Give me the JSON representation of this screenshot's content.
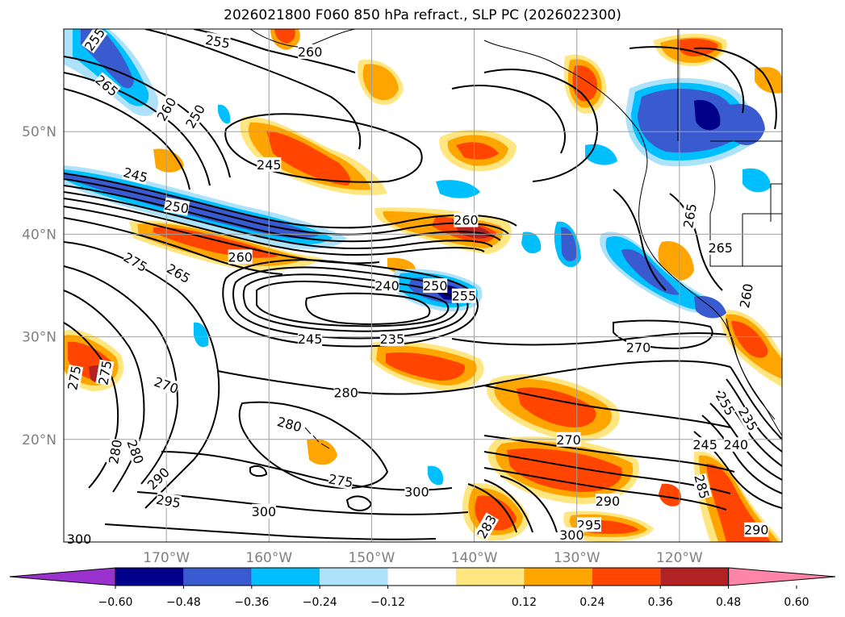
{
  "title": "2026021800 F060 850 hPa refract., SLP PC (2026022300)",
  "map": {
    "projection": "PlateCarree",
    "extent": {
      "lon_min": -180,
      "lon_max": -110,
      "lat_min": 10,
      "lat_max": 60
    },
    "gridlines": true,
    "lat_ticks": [
      {
        "value": 20,
        "label": "20°N"
      },
      {
        "value": 30,
        "label": "30°N"
      },
      {
        "value": 40,
        "label": "40°N"
      },
      {
        "value": 50,
        "label": "50°N"
      }
    ],
    "lon_ticks": [
      {
        "value": -170,
        "label": "170°W"
      },
      {
        "value": -160,
        "label": "160°W"
      },
      {
        "value": -150,
        "label": "150°W"
      },
      {
        "value": -140,
        "label": "140°W"
      },
      {
        "value": -130,
        "label": "130°W"
      },
      {
        "value": -120,
        "label": "120°W"
      }
    ]
  },
  "colorbar": {
    "extend": "both",
    "colors": [
      "#9932CC",
      "#00008B",
      "#3A5BD0",
      "#00BFFF",
      "#AEE2FA",
      "#FFFFFF",
      "#FFE680",
      "#FFA500",
      "#FF4500",
      "#B22222",
      "#FF85A8"
    ],
    "ticks": [
      "−0.60",
      "−0.48",
      "−0.36",
      "−0.24",
      "−0.12",
      "0.12",
      "0.24",
      "0.36",
      "0.48",
      "0.60"
    ]
  },
  "contour_labels": [
    {
      "text": "255",
      "lon": -177.0,
      "lat": 59.0,
      "rot": 55
    },
    {
      "text": "255",
      "lon": -165.0,
      "lat": 58.8,
      "rot": -10
    },
    {
      "text": "260",
      "lon": -156.0,
      "lat": 57.8,
      "rot": 0
    },
    {
      "text": "265",
      "lon": -175.8,
      "lat": 54.5,
      "rot": -40
    },
    {
      "text": "260",
      "lon": -170.0,
      "lat": 52.2,
      "rot": 60
    },
    {
      "text": "250",
      "lon": -167.2,
      "lat": 51.5,
      "rot": 60
    },
    {
      "text": "245",
      "lon": -160.0,
      "lat": 46.8,
      "rot": 0
    },
    {
      "text": "245",
      "lon": -173.0,
      "lat": 45.8,
      "rot": -15
    },
    {
      "text": "250",
      "lon": -169.0,
      "lat": 42.7,
      "rot": -10
    },
    {
      "text": "260",
      "lon": -140.8,
      "lat": 41.4,
      "rot": 0
    },
    {
      "text": "260",
      "lon": -162.8,
      "lat": 37.8,
      "rot": 0
    },
    {
      "text": "275",
      "lon": -173.0,
      "lat": 37.3,
      "rot": -30
    },
    {
      "text": "265",
      "lon": -168.8,
      "lat": 36.2,
      "rot": -30
    },
    {
      "text": "240",
      "lon": -148.5,
      "lat": 35.0,
      "rot": 0
    },
    {
      "text": "250",
      "lon": -143.8,
      "lat": 35.0,
      "rot": 0
    },
    {
      "text": "255",
      "lon": -141.0,
      "lat": 34.0,
      "rot": 0
    },
    {
      "text": "265",
      "lon": -116.0,
      "lat": 38.7,
      "rot": 0
    },
    {
      "text": "265",
      "lon": -119.0,
      "lat": 41.8,
      "rot": 80
    },
    {
      "text": "260",
      "lon": -113.5,
      "lat": 34.0,
      "rot": 80
    },
    {
      "text": "245",
      "lon": -156.0,
      "lat": 29.8,
      "rot": 0
    },
    {
      "text": "235",
      "lon": -148.0,
      "lat": 29.8,
      "rot": 0
    },
    {
      "text": "270",
      "lon": -124.0,
      "lat": 29.0,
      "rot": 0
    },
    {
      "text": "275",
      "lon": -179.0,
      "lat": 26.0,
      "rot": 80
    },
    {
      "text": "275",
      "lon": -176.0,
      "lat": 26.5,
      "rot": 80
    },
    {
      "text": "270",
      "lon": -170.0,
      "lat": 25.3,
      "rot": -20
    },
    {
      "text": "280",
      "lon": -152.5,
      "lat": 24.6,
      "rot": 0
    },
    {
      "text": "280",
      "lon": -158.0,
      "lat": 21.5,
      "rot": -15
    },
    {
      "text": "280",
      "lon": -175.0,
      "lat": 18.8,
      "rot": 80
    },
    {
      "text": "280",
      "lon": -173.0,
      "lat": 18.8,
      "rot": -70
    },
    {
      "text": "270",
      "lon": -130.8,
      "lat": 20.0,
      "rot": 0
    },
    {
      "text": "255",
      "lon": -115.5,
      "lat": 23.5,
      "rot": -60
    },
    {
      "text": "235",
      "lon": -113.3,
      "lat": 22.0,
      "rot": -60
    },
    {
      "text": "245",
      "lon": -117.5,
      "lat": 19.5,
      "rot": 0
    },
    {
      "text": "240",
      "lon": -114.5,
      "lat": 19.5,
      "rot": 0
    },
    {
      "text": "285",
      "lon": -117.8,
      "lat": 15.4,
      "rot": -75
    },
    {
      "text": "290",
      "lon": -170.8,
      "lat": 16.2,
      "rot": 45
    },
    {
      "text": "275",
      "lon": -153.0,
      "lat": 16.0,
      "rot": -10
    },
    {
      "text": "295",
      "lon": -169.8,
      "lat": 14.0,
      "rot": -10
    },
    {
      "text": "300",
      "lon": -145.6,
      "lat": 14.9,
      "rot": 0
    },
    {
      "text": "300",
      "lon": -160.5,
      "lat": 13.0,
      "rot": 0
    },
    {
      "text": "290",
      "lon": -127.0,
      "lat": 14.0,
      "rot": 0
    },
    {
      "text": "283",
      "lon": -138.8,
      "lat": 11.5,
      "rot": 60
    },
    {
      "text": "295",
      "lon": -128.8,
      "lat": 11.7,
      "rot": 0
    },
    {
      "text": "300",
      "lon": -130.5,
      "lat": 10.7,
      "rot": 0
    },
    {
      "text": "290",
      "lon": -112.5,
      "lat": 11.2,
      "rot": 0
    },
    {
      "text": "300",
      "lon": -178.5,
      "lat": 10.3,
      "rot": 0
    }
  ]
}
